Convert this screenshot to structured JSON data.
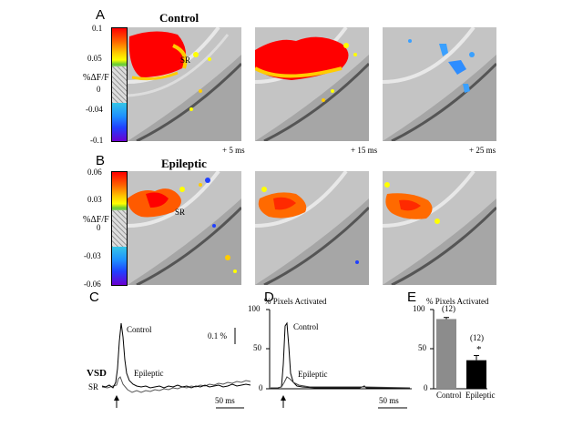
{
  "panelA": {
    "letter": "A",
    "title": "Control",
    "ticks": [
      "0.1",
      "0.05",
      "0",
      "-0.04",
      "-0.1"
    ],
    "yaxis": "%ΔF/F",
    "region": "SR",
    "times": [
      "+ 5 ms",
      "+ 15 ms",
      "+ 25 ms"
    ]
  },
  "panelB": {
    "letter": "B",
    "title": "Epileptic",
    "ticks": [
      "0.06",
      "0.03",
      "0",
      "-0.03",
      "-0.06"
    ],
    "yaxis": "%ΔF/F",
    "region": "SR"
  },
  "panelC": {
    "letter": "C",
    "control_label": "Control",
    "epileptic_label": "Epileptic",
    "scale_label": "0.1 %",
    "vsd_label": "VSD",
    "sr_label": "SR",
    "time_scale": "50 ms"
  },
  "panelD": {
    "letter": "D",
    "title": "% Pixels Activated",
    "yticks": [
      "100",
      "50",
      "0"
    ],
    "control_label": "Control",
    "epileptic_label": "Epileptic",
    "time_scale": "50 ms"
  },
  "panelE": {
    "letter": "E",
    "title": "% Pixels Activated",
    "significance": "*",
    "colors": {
      "control": "#8c8c8c",
      "epileptic": "#000000"
    }
  },
  "chart_data": {
    "type": "bar",
    "categories": [
      "Control",
      "Epileptic"
    ],
    "values": [
      88,
      36
    ],
    "errors": [
      2,
      6
    ],
    "n_labels": [
      "(12)",
      "(12)"
    ],
    "ylim": [
      0,
      100
    ],
    "yticks": [
      0,
      50,
      100
    ]
  }
}
